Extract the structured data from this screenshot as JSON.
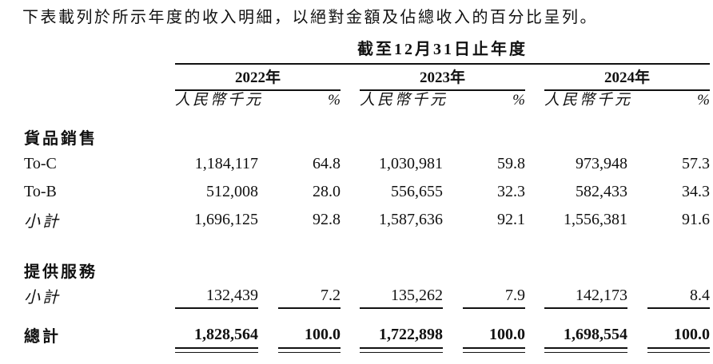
{
  "intro": "下表載列於所示年度的收入明細，以絕對金額及佔總收入的百分比呈列。",
  "table": {
    "period_header": "截至12月31日止年度",
    "years": [
      "2022年",
      "2023年",
      "2024年"
    ],
    "unit_label": "人民幣千元",
    "pct_label": "%",
    "section_goods": "貨品銷售",
    "section_services": "提供服務",
    "rows": {
      "toc": {
        "label": "To-C",
        "v": [
          "1,184,117",
          "64.8",
          "1,030,981",
          "59.8",
          "973,948",
          "57.3"
        ]
      },
      "tob": {
        "label": "To-B",
        "v": [
          "512,008",
          "28.0",
          "556,655",
          "32.3",
          "582,433",
          "34.3"
        ]
      },
      "goods_subtotal": {
        "label": "小計",
        "v": [
          "1,696,125",
          "92.8",
          "1,587,636",
          "92.1",
          "1,556,381",
          "91.6"
        ]
      },
      "services_subtotal": {
        "label": "小計",
        "v": [
          "132,439",
          "7.2",
          "135,262",
          "7.9",
          "142,173",
          "8.4"
        ]
      },
      "total": {
        "label": "總計",
        "v": [
          "1,828,564",
          "100.0",
          "1,722,898",
          "100.0",
          "1,698,554",
          "100.0"
        ]
      }
    }
  },
  "colors": {
    "text": "#111111",
    "background": "#ffffff",
    "rule": "#111111"
  }
}
